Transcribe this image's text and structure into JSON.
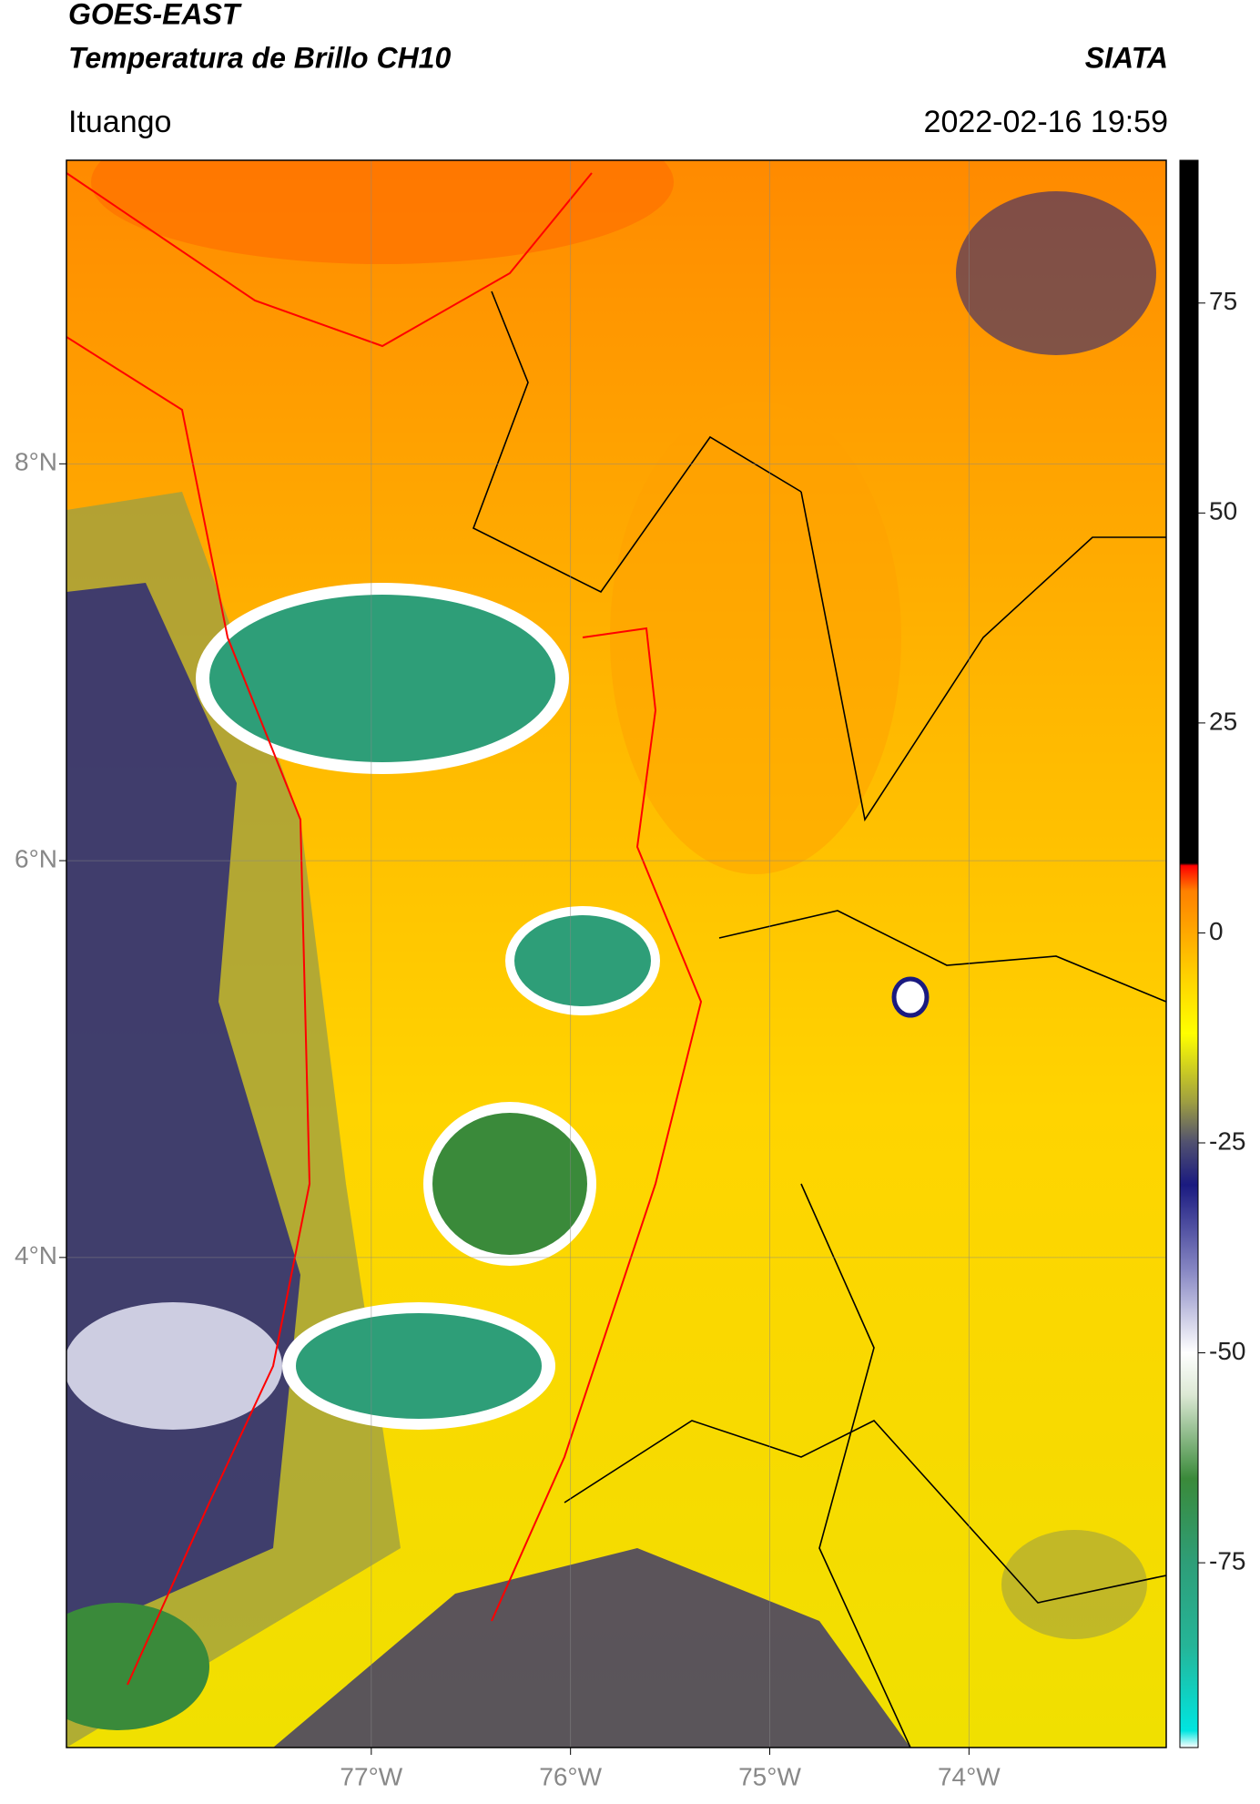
{
  "header": {
    "title": "GOES-EAST",
    "subtitle": "Temperatura de Brillo CH10",
    "source": "SIATA",
    "location": "Ituango",
    "datetime": "2022-02-16 19:59"
  },
  "map": {
    "xlim": [
      -78.53,
      -73.01
    ],
    "ylim": [
      1.53,
      9.53
    ],
    "xticks": [
      {
        "value": -77,
        "label": "77°W"
      },
      {
        "value": -76,
        "label": "76°W"
      },
      {
        "value": -75,
        "label": "75°W"
      },
      {
        "value": -74,
        "label": "74°W"
      }
    ],
    "yticks": [
      {
        "value": 8,
        "label": "8°N"
      },
      {
        "value": 6,
        "label": "6°N"
      },
      {
        "value": 4,
        "label": "4°N"
      }
    ],
    "grid": true
  },
  "colorbar": {
    "lim": [
      -97,
      92
    ],
    "ticks": [
      -75,
      -50,
      -25,
      0,
      25,
      50,
      75
    ],
    "stops": [
      {
        "value": -97,
        "color": "#ffffff"
      },
      {
        "value": -95,
        "color": "#00e5e0"
      },
      {
        "value": -85,
        "color": "#25b598"
      },
      {
        "value": -75,
        "color": "#2e9e78"
      },
      {
        "value": -65,
        "color": "#3a8a3a"
      },
      {
        "value": -55,
        "color": "#dce8d4"
      },
      {
        "value": -50,
        "color": "#ffffff"
      },
      {
        "value": -40,
        "color": "#8585c2"
      },
      {
        "value": -30,
        "color": "#1a1a80"
      },
      {
        "value": -25,
        "color": "#505070"
      },
      {
        "value": -20,
        "color": "#a0a040"
      },
      {
        "value": -12,
        "color": "#ffff00"
      },
      {
        "value": -5,
        "color": "#ffd000"
      },
      {
        "value": 5,
        "color": "#ff8000"
      },
      {
        "value": 8,
        "color": "#ff0000"
      },
      {
        "value": 8.3,
        "color": "#000000"
      },
      {
        "value": 92,
        "color": "#000000"
      }
    ]
  }
}
